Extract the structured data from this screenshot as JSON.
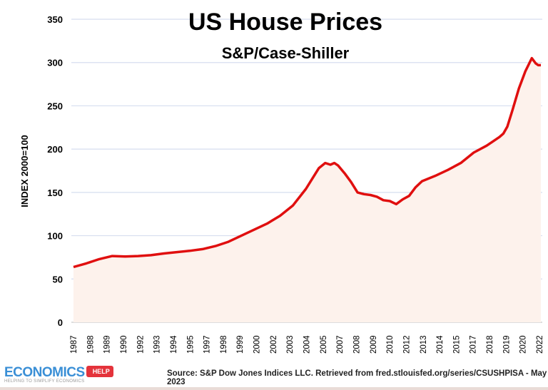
{
  "chart_data": {
    "type": "area",
    "title": "US House Prices",
    "subtitle": "S&P/Case-Shiller",
    "xlabel": "",
    "ylabel": "INDEX 2000=100",
    "ylim": [
      0,
      350
    ],
    "yticks": [
      0,
      50,
      100,
      150,
      200,
      250,
      300,
      350
    ],
    "xtick_labels": [
      "1987",
      "1988",
      "1989",
      "1990",
      "1992",
      "1993",
      "1994",
      "1995",
      "1997",
      "1998",
      "1999",
      "2000",
      "2002",
      "2003",
      "2004",
      "2005",
      "2007",
      "2008",
      "2009",
      "2010",
      "2012",
      "2013",
      "2014",
      "2015",
      "2017",
      "2018",
      "2019",
      "2020",
      "2022"
    ],
    "grid": true,
    "legend": "none",
    "line_color": "#e00f0f",
    "fill_color": "#fdf2ec",
    "grid_color": "#d6deef",
    "series": [
      {
        "x": [
          1987.0,
          1988.0,
          1989.0,
          1990.0,
          1991.0,
          1992.0,
          1993.0,
          1994.0,
          1995.0,
          1996.0,
          1997.0,
          1998.0,
          1999.0,
          2000.0,
          2001.0,
          2002.0,
          2003.0,
          2004.0,
          2005.0,
          2006.0,
          2006.5,
          2006.9,
          2007.2,
          2007.5,
          2008.0,
          2008.5,
          2009.0,
          2009.5,
          2010.0,
          2010.5,
          2011.0,
          2011.5,
          2012.0,
          2012.5,
          2013.0,
          2013.5,
          2014.0,
          2015.0,
          2016.0,
          2017.0,
          2018.0,
          2019.0,
          2019.5,
          2020.0,
          2020.3,
          2020.6,
          2021.0,
          2021.5,
          2022.0,
          2022.5,
          2022.8,
          2023.0,
          2023.2
        ],
        "values": [
          63.8,
          68,
          73,
          76.5,
          76,
          76.5,
          77.5,
          79.5,
          81,
          82.5,
          84.5,
          88,
          93,
          100,
          107,
          114,
          123,
          135,
          154,
          178,
          184,
          182,
          184,
          181,
          172,
          162,
          150,
          148,
          147,
          145,
          141,
          140,
          136.5,
          142,
          146,
          156,
          163,
          169,
          176,
          184,
          196,
          204,
          209,
          214,
          218,
          226,
          245,
          270,
          290,
          305,
          299,
          297,
          297
        ]
      }
    ]
  },
  "footer": {
    "logo_main": "ECONOMICS",
    "logo_tag": "HELP",
    "logo_sub": "HELPING TO SIMPLIFY ECONOMICS",
    "source": "Source: S&P Dow Jones Indices LLC. Retrieved from fred.stlouisfed.org/series/CSUSHPISA - May 2023"
  }
}
